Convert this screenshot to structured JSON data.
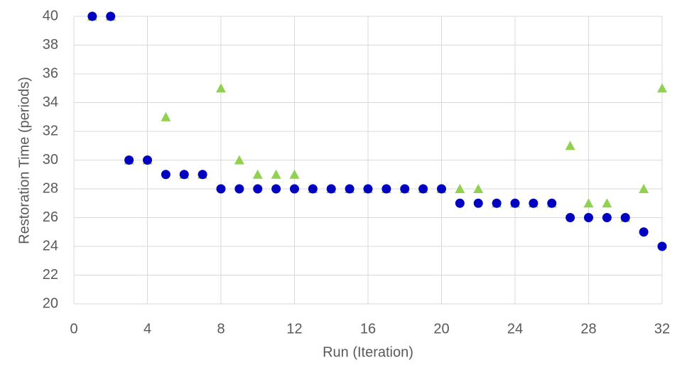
{
  "chart_data": {
    "type": "scatter",
    "x_label": "Run (Iteration)",
    "y_label": "Restoration Time (periods)",
    "x": [
      1,
      2,
      3,
      4,
      5,
      6,
      7,
      8,
      9,
      10,
      11,
      12,
      13,
      14,
      15,
      16,
      17,
      18,
      19,
      20,
      21,
      22,
      23,
      24,
      25,
      26,
      27,
      28,
      29,
      30,
      31,
      32
    ],
    "series": [
      {
        "color": "#92d050",
        "marker": "triangle",
        "values": [
          40,
          40,
          30,
          30,
          33,
          29,
          29,
          35,
          30,
          29,
          29,
          29,
          28,
          28,
          28,
          28,
          28,
          28,
          28,
          28,
          28,
          28,
          27,
          27,
          27,
          27,
          31,
          27,
          27,
          26,
          28,
          35
        ]
      },
      {
        "color": "#0000c0",
        "marker": "circle",
        "values": [
          40,
          40,
          30,
          30,
          29,
          29,
          29,
          28,
          28,
          28,
          28,
          28,
          28,
          28,
          28,
          28,
          28,
          28,
          28,
          28,
          27,
          27,
          27,
          27,
          27,
          27,
          26,
          26,
          26,
          26,
          25,
          24
        ]
      }
    ],
    "xlim": [
      0,
      32
    ],
    "xticks": [
      0,
      4,
      8,
      12,
      16,
      20,
      24,
      28,
      32
    ],
    "ylim": [
      20,
      40
    ],
    "yticks": [
      20,
      22,
      24,
      26,
      28,
      30,
      32,
      34,
      36,
      38,
      40
    ],
    "grid": true
  }
}
